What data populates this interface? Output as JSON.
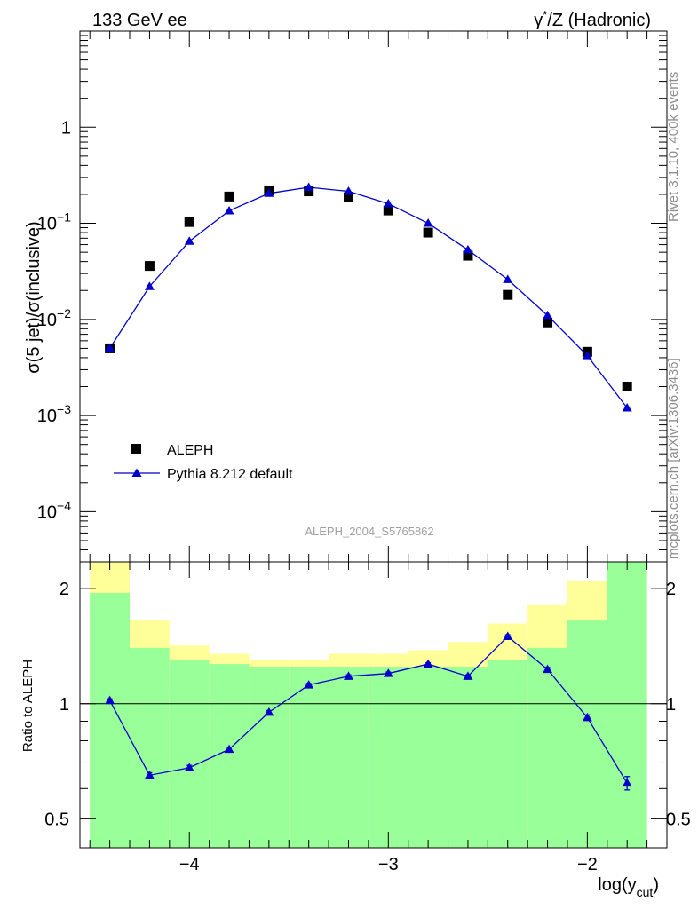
{
  "header": {
    "left": "133 GeV ee",
    "right_prefix": "γ",
    "right_sup": "*",
    "right_suffix": "/Z (Hadronic)"
  },
  "side_labels": {
    "rivet": "Rivet 3.1.10,  400k events",
    "mcplots": "mcplots.cern.ch [arXiv:1306.3436]"
  },
  "analysis_tag": "ALEPH_2004_S5765862",
  "colors": {
    "data": "#000000",
    "mc": "#0000cc",
    "band_inner": "#99ff99",
    "band_outer": "#ffff99"
  },
  "chart_data": [
    {
      "type": "scatter",
      "panel": "main",
      "ylabel": "σ(5 jet)/σ(inclusive)",
      "yscale": "log",
      "ylim": [
        3e-05,
        10
      ],
      "xlim": [
        -4.55,
        -1.6
      ],
      "y_ticks": [
        {
          "value": 0.0001,
          "base": "10",
          "exp": "−4"
        },
        {
          "value": 0.001,
          "base": "10",
          "exp": "−3"
        },
        {
          "value": 0.01,
          "base": "10",
          "exp": "−2"
        },
        {
          "value": 0.1,
          "base": "10",
          "exp": "−1"
        },
        {
          "value": 1,
          "base": "1",
          "exp": ""
        }
      ],
      "legend_position": "bottom-left",
      "series": [
        {
          "name": "ALEPH",
          "marker": "square",
          "x": [
            -4.4,
            -4.2,
            -4.0,
            -3.8,
            -3.6,
            -3.4,
            -3.2,
            -3.0,
            -2.8,
            -2.6,
            -2.4,
            -2.2,
            -2.0,
            -1.8
          ],
          "values": [
            0.005,
            0.036,
            0.103,
            0.19,
            0.22,
            0.215,
            0.187,
            0.136,
            0.08,
            0.046,
            0.018,
            0.0093,
            0.0046,
            0.002
          ]
        },
        {
          "name": "Pythia 8.212 default",
          "marker": "triangle",
          "x": [
            -4.4,
            -4.2,
            -4.0,
            -3.8,
            -3.6,
            -3.4,
            -3.2,
            -3.0,
            -2.8,
            -2.6,
            -2.4,
            -2.2,
            -2.0,
            -1.8
          ],
          "values": [
            0.005,
            0.022,
            0.065,
            0.135,
            0.205,
            0.237,
            0.215,
            0.16,
            0.1,
            0.053,
            0.026,
            0.011,
            0.0042,
            0.0012
          ]
        }
      ]
    },
    {
      "type": "line",
      "panel": "ratio",
      "ylabel": "Ratio to ALEPH",
      "xlabel": "log(y_cut)",
      "xlabel_main": "log(y",
      "xlabel_sub": "cut",
      "xlabel_close": ")",
      "yscale": "log",
      "ylim": [
        0.42,
        2.35
      ],
      "xlim": [
        -4.55,
        -1.6
      ],
      "reference_line": 1,
      "x_ticks": [
        {
          "value": -4,
          "label": "−4"
        },
        {
          "value": -3,
          "label": "−3"
        },
        {
          "value": -2,
          "label": "−2"
        }
      ],
      "y_ticks": [
        {
          "value": 0.5,
          "label": "0.5"
        },
        {
          "value": 1,
          "label": "1"
        },
        {
          "value": 2,
          "label": "2"
        }
      ],
      "bin_edges": [
        -4.5,
        -4.3,
        -4.1,
        -3.9,
        -3.7,
        -3.5,
        -3.3,
        -3.1,
        -2.9,
        -2.7,
        -2.5,
        -2.3,
        -2.1,
        -1.9,
        -1.7
      ],
      "uncertainty_band_inner": {
        "lower": [
          0.42,
          0.42,
          0.42,
          0.42,
          0.42,
          0.42,
          0.42,
          0.42,
          0.42,
          0.42,
          0.42,
          0.42,
          0.42,
          0.42
        ],
        "upper": [
          1.95,
          1.4,
          1.3,
          1.27,
          1.25,
          1.25,
          1.25,
          1.25,
          1.25,
          1.25,
          1.3,
          1.4,
          1.65,
          2.35
        ]
      },
      "uncertainty_band_outer": {
        "lower": [
          0.42,
          0.72,
          0.42,
          0.86,
          0.88,
          0.88,
          0.83,
          0.83,
          0.72,
          0.66,
          0.42,
          0.42,
          0.42,
          0.42
        ],
        "upper": [
          2.35,
          1.65,
          1.42,
          1.35,
          1.3,
          1.3,
          1.35,
          1.35,
          1.38,
          1.45,
          1.62,
          1.82,
          2.1,
          2.35
        ]
      },
      "series": [
        {
          "name": "Pythia 8.212 default / ALEPH",
          "x": [
            -4.4,
            -4.2,
            -4.0,
            -3.8,
            -3.6,
            -3.4,
            -3.2,
            -3.0,
            -2.8,
            -2.6,
            -2.4,
            -2.2,
            -2.0,
            -1.8
          ],
          "values": [
            1.02,
            0.65,
            0.68,
            0.76,
            0.95,
            1.12,
            1.18,
            1.2,
            1.27,
            1.18,
            1.5,
            1.23,
            0.92,
            0.62
          ],
          "errors": [
            0.01,
            0.01,
            0.01,
            0.01,
            0.01,
            0.01,
            0.01,
            0.01,
            0.01,
            0.01,
            0.015,
            0.015,
            0.015,
            0.025
          ]
        }
      ]
    }
  ]
}
